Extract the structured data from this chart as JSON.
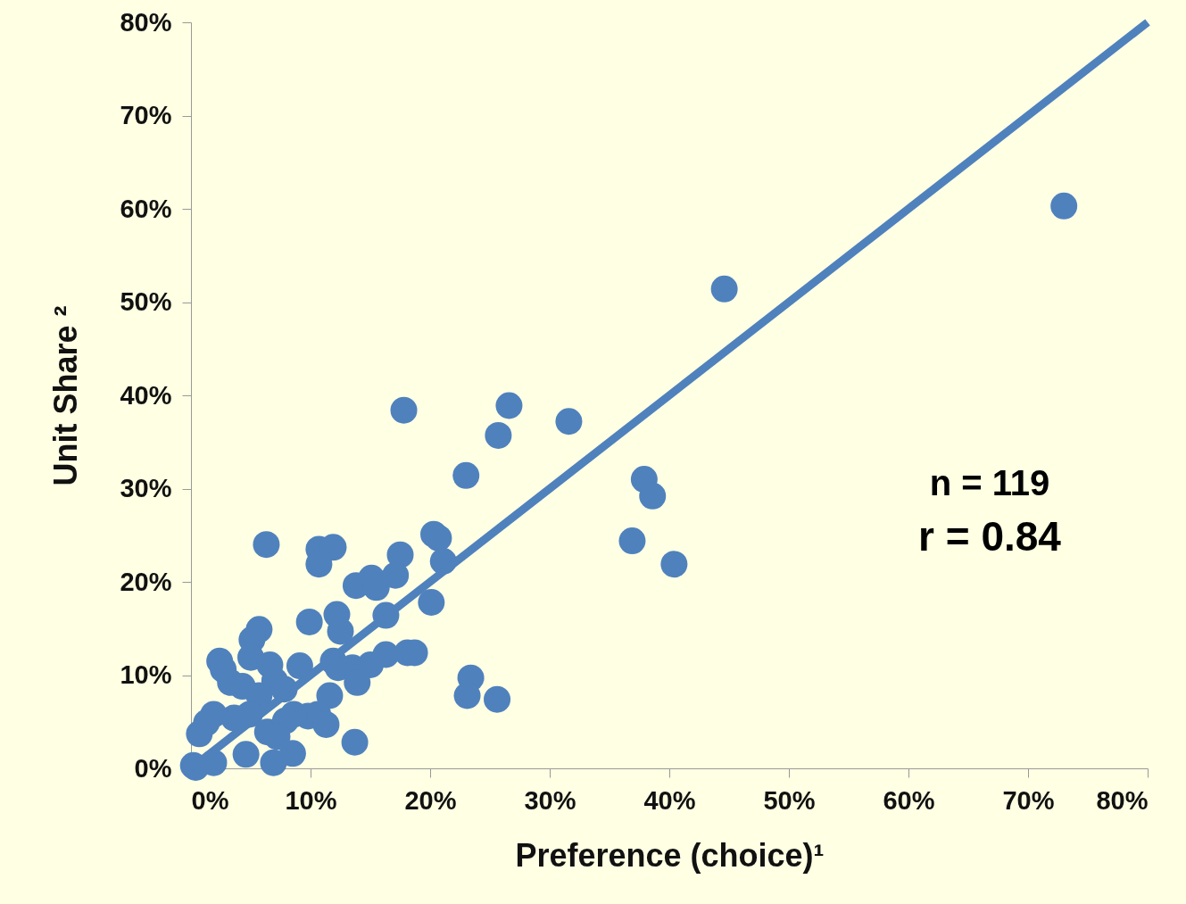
{
  "chart_data": {
    "type": "scatter",
    "xlabel": "Preference (choice)¹",
    "ylabel": "Unit Share ²",
    "xlim": [
      0,
      80
    ],
    "ylim": [
      0,
      80
    ],
    "xticks": [
      {
        "value": 0,
        "label": "0%"
      },
      {
        "value": 10,
        "label": "10%"
      },
      {
        "value": 20,
        "label": "20%"
      },
      {
        "value": 30,
        "label": "30%"
      },
      {
        "value": 40,
        "label": "40%"
      },
      {
        "value": 50,
        "label": "50%"
      },
      {
        "value": 60,
        "label": "60%"
      },
      {
        "value": 70,
        "label": "70%"
      },
      {
        "value": 80,
        "label": "80%"
      }
    ],
    "yticks": [
      {
        "value": 0,
        "label": "0%"
      },
      {
        "value": 10,
        "label": "10%"
      },
      {
        "value": 20,
        "label": "20%"
      },
      {
        "value": 30,
        "label": "30%"
      },
      {
        "value": 40,
        "label": "40%"
      },
      {
        "value": 50,
        "label": "50%"
      },
      {
        "value": 60,
        "label": "60%"
      },
      {
        "value": 70,
        "label": "70%"
      },
      {
        "value": 80,
        "label": "80%"
      }
    ],
    "grid": false,
    "annotations": [
      "n = 119",
      "r = 0.84"
    ],
    "series": [
      {
        "color": "#4f81bd",
        "marker": "circle",
        "x": [
          73.0,
          44.6,
          17.8,
          26.6,
          25.7,
          31.6,
          23.0,
          37.9,
          38.6,
          36.9,
          40.4,
          6.3,
          10.7,
          11.9,
          10.7,
          17.5,
          20.3,
          20.7,
          21.1,
          13.8,
          15.1,
          15.5,
          17.1,
          20.1,
          9.9,
          12.2,
          12.5,
          16.3,
          5.7,
          5.1,
          5.0,
          2.4,
          2.7,
          6.6,
          9.1,
          11.9,
          12.3,
          13.5,
          15.0,
          16.3,
          18.1,
          18.7,
          3.3,
          4.3,
          7.0,
          7.8,
          13.9,
          23.4,
          23.1,
          25.6,
          11.6,
          10.6,
          9.8,
          11.3,
          13.7,
          8.5,
          6.9,
          8.6,
          5.7,
          4.9,
          3.6,
          1.9,
          1.3,
          0.7,
          6.4,
          4.6,
          0.2,
          0.4,
          1.9,
          7.9,
          7.2
        ],
        "values": [
          60.3,
          51.4,
          38.4,
          38.9,
          35.7,
          37.2,
          31.4,
          31.0,
          29.2,
          24.4,
          21.9,
          24.0,
          23.5,
          23.7,
          21.9,
          22.9,
          25.1,
          24.7,
          22.2,
          19.6,
          20.4,
          19.4,
          20.7,
          17.8,
          15.7,
          16.5,
          14.7,
          16.4,
          14.9,
          13.8,
          11.9,
          11.5,
          10.6,
          11.1,
          11.0,
          11.5,
          10.8,
          10.8,
          11.1,
          12.2,
          12.4,
          12.4,
          9.2,
          8.8,
          9.4,
          8.5,
          9.2,
          9.7,
          7.8,
          7.4,
          7.8,
          5.8,
          5.6,
          4.7,
          2.8,
          1.6,
          0.6,
          5.8,
          7.8,
          5.8,
          5.4,
          5.8,
          4.9,
          3.7,
          3.9,
          1.5,
          0.3,
          0.1,
          0.6,
          5.1,
          3.4
        ]
      },
      {
        "type": "line",
        "color": "#4f81bd",
        "x": [
          0,
          80
        ],
        "values": [
          0,
          80
        ]
      }
    ]
  }
}
